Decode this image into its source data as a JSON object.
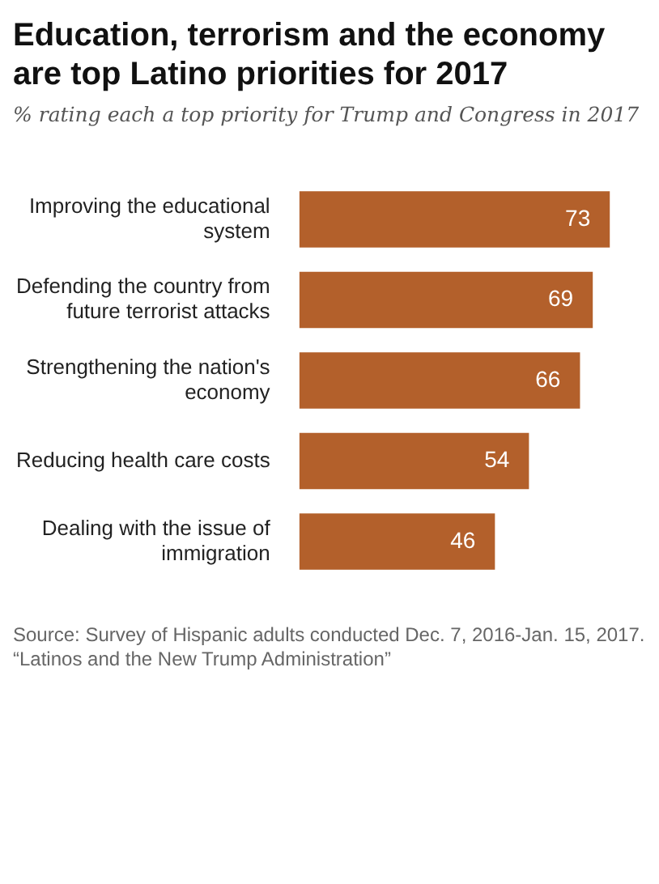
{
  "chart_data": {
    "type": "bar",
    "orientation": "horizontal",
    "title": "Education, terrorism and the economy are top Latino priorities for 2017",
    "subtitle": "% rating each a top priority for Trump and Congress in 2017",
    "categories": [
      "Improving the educational system",
      "Defending the country from future terrorist attacks",
      "Strengthening the nation's economy",
      "Reducing health care costs",
      "Dealing with the issue of immigration"
    ],
    "values": [
      73,
      69,
      66,
      54,
      46
    ],
    "color": "#b3602b",
    "data_labels": true,
    "tick_labels": "y",
    "legend": false,
    "annotations": [
      "Source: Survey of Hispanic adults conducted Dec. 7, 2016-Jan. 15, 2017.",
      "“Latinos and the New Trump Administration”"
    ]
  }
}
